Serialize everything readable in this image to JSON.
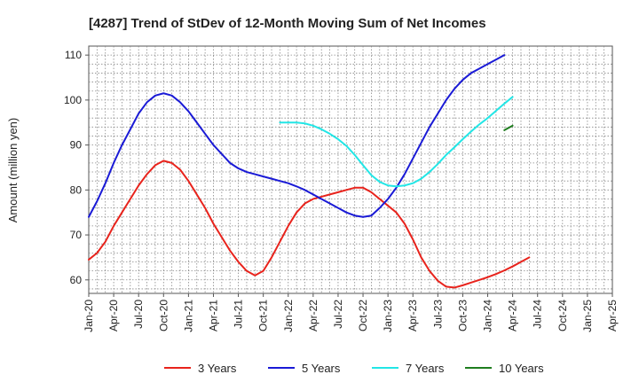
{
  "chart_data": {
    "type": "line",
    "title": "[4287]  Trend of StDev of 12-Month Moving Sum of Net Incomes",
    "xlabel": "",
    "ylabel": "Amount (million yen)",
    "x_tick_labels": [
      "Jan-20",
      "Apr-20",
      "Jul-20",
      "Oct-20",
      "Jan-21",
      "Apr-21",
      "Jul-21",
      "Oct-21",
      "Jan-22",
      "Apr-22",
      "Jul-22",
      "Oct-22",
      "Jan-23",
      "Apr-23",
      "Jul-23",
      "Oct-23",
      "Jan-24",
      "Apr-24",
      "Jul-24",
      "Oct-24",
      "Jan-25",
      "Apr-25"
    ],
    "y_ticks": [
      60,
      70,
      80,
      90,
      100,
      110
    ],
    "ylim": [
      57,
      112
    ],
    "grid": true,
    "legend_position": "bottom",
    "series": [
      {
        "name": "3 Years",
        "color": "#e8231c",
        "start_index": 0,
        "values": [
          64.5,
          66,
          68.5,
          72,
          75,
          78,
          81,
          83.5,
          85.5,
          86.5,
          86,
          84.5,
          82,
          79,
          76,
          72.5,
          69.5,
          66.5,
          64,
          62,
          61,
          62,
          65,
          68.5,
          72,
          75,
          77,
          78,
          78.5,
          79,
          79.5,
          80,
          80.5,
          80.5,
          79.5,
          78,
          76.5,
          75,
          72.5,
          69,
          65,
          62,
          59.8,
          58.5,
          58.3,
          58.8,
          59.4,
          60,
          60.6,
          61.3,
          62.1,
          63,
          64,
          65
        ]
      },
      {
        "name": "5 Years",
        "color": "#1a1ad6",
        "start_index": 0,
        "values": [
          74,
          77.5,
          81.5,
          86,
          90,
          93.5,
          97,
          99.5,
          101,
          101.5,
          101,
          99.5,
          97.5,
          95,
          92.5,
          90,
          88,
          86,
          84.8,
          84,
          83.5,
          83,
          82.5,
          82,
          81.5,
          80.8,
          80,
          79,
          78,
          77,
          76,
          75,
          74.3,
          74,
          74.3,
          76,
          78,
          80.5,
          83.5,
          87,
          90.5,
          94,
          97,
          100,
          102.5,
          104.5,
          106,
          107,
          108,
          109,
          110
        ]
      },
      {
        "name": "7 Years",
        "color": "#22e6e6",
        "start_index": 23,
        "values": [
          95,
          95,
          95,
          94.8,
          94.3,
          93.5,
          92.5,
          91.3,
          89.8,
          87.8,
          85.5,
          83.3,
          81.8,
          81,
          80.8,
          81,
          81.5,
          82.5,
          84,
          85.8,
          87.8,
          89.5,
          91.3,
          93,
          94.6,
          96,
          97.6,
          99.2,
          100.7
        ]
      },
      {
        "name": "10 Years",
        "color": "#1e7d1e",
        "start_index": 50,
        "values": [
          93.3,
          94.3
        ]
      }
    ]
  }
}
